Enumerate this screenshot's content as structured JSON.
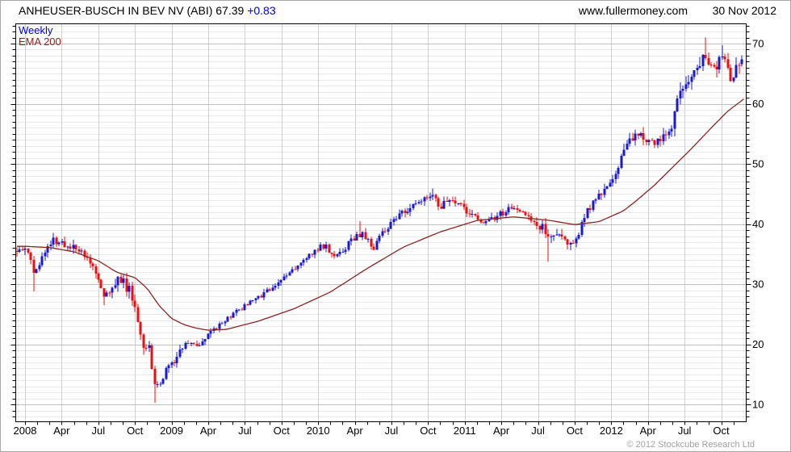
{
  "header": {
    "instrument": "ANHEUSER-BUSCH IN BEV NV (ABI)",
    "last_price": "67.39",
    "change": "+0.83",
    "website": "www.fullermoney.com",
    "date": "30 Nov 2012"
  },
  "legend": {
    "timeframe": "Weekly",
    "overlay": "EMA 200"
  },
  "footer": {
    "copyright": "© 2012 Stockcube Research Ltd"
  },
  "colors": {
    "up_candle": "#1a1acd",
    "down_candle": "#e81010",
    "ema_line": "#8b2424",
    "change_text": "#0000cc",
    "grid_minor": "#e9e9e9",
    "grid_major": "#bfbfbf",
    "grid_vertical": "#d0d0d0",
    "axis": "#000000",
    "copyright_text": "#a0a0a0"
  },
  "chart_data": {
    "type": "candlestick",
    "title": "ANHEUSER-BUSCH IN BEV NV (ABI)",
    "timeframe": "Weekly",
    "overlay": "EMA 200",
    "last_close": 67.39,
    "change": 0.83,
    "as_of": "30 Nov 2012",
    "x_axis": {
      "unit": "months since Jan 2008",
      "tick_labels": [
        "2008",
        "Apr",
        "Jul",
        "Oct",
        "2009",
        "Apr",
        "Jul",
        "Oct",
        "2010",
        "Apr",
        "Jul",
        "Oct",
        "2011",
        "Apr",
        "Jul",
        "Oct",
        "2012",
        "Apr",
        "Jul",
        "Oct"
      ],
      "tick_positions_months": [
        0,
        3,
        6,
        9,
        12,
        15,
        18,
        21,
        24,
        27,
        30,
        33,
        36,
        39,
        42,
        45,
        48,
        51,
        54,
        57
      ],
      "range_months": [
        -0.7,
        58.9
      ]
    },
    "y_axis": {
      "ticks": [
        10,
        20,
        30,
        40,
        50,
        60,
        70
      ],
      "range": [
        7.2,
        73.4
      ],
      "side": "right"
    },
    "grid": {
      "vertical": "quarterly",
      "h_minor_step": 1,
      "h_major_step": 10
    },
    "price_monthly_anchors": {
      "m": [
        -0.75,
        0,
        0.45,
        0.8,
        1.5,
        2.3,
        3,
        3.7,
        4.5,
        5.3,
        5.9,
        6.4,
        7,
        7.8,
        8.5,
        9.3,
        9.7,
        10.1,
        10.55,
        11,
        11.6,
        12.1,
        12.9,
        13.6,
        14.3,
        15.1,
        16,
        17,
        18,
        19,
        20,
        21,
        22,
        23,
        24,
        24.6,
        25.3,
        26,
        27,
        27.7,
        28.5,
        29.5,
        30.5,
        31.5,
        32.5,
        33.3,
        33.9,
        34.6,
        35.6,
        36.6,
        37.5,
        38.5,
        39.5,
        40.5,
        41.5,
        42.3,
        42.9,
        43.6,
        44.5,
        45.2,
        45.8,
        46.5,
        47.5,
        48.1,
        48.8,
        49.5,
        50.5,
        51.3,
        52.1,
        52.9,
        53.4,
        54.1,
        54.8,
        55.3,
        55.9,
        56.4,
        57,
        57.7,
        58.3,
        58.85
      ],
      "close": [
        35.2,
        36,
        34,
        31.3,
        35,
        37.4,
        37,
        36,
        35.8,
        33.3,
        31.6,
        27.6,
        28.8,
        30.9,
        29.2,
        24,
        19.6,
        20.3,
        13,
        13.6,
        15.8,
        16.8,
        19.6,
        20.6,
        19.6,
        21.8,
        23.4,
        25,
        26.4,
        27.6,
        29,
        31,
        32.6,
        34.4,
        36,
        36.4,
        34.5,
        35.6,
        37.8,
        38.4,
        36,
        39.2,
        41.4,
        42.6,
        44,
        45.1,
        42.9,
        43.6,
        43.2,
        41.4,
        40.2,
        41,
        42.4,
        42.4,
        40.4,
        39.6,
        37.3,
        38.6,
        37,
        38,
        41.2,
        43.6,
        45.4,
        47,
        50.8,
        54,
        55,
        53.2,
        54.2,
        56,
        61.2,
        62.6,
        65.8,
        67.4,
        66.6,
        65.6,
        68.3,
        64.6,
        65.8,
        67.39
      ]
    },
    "ema200_anchors": {
      "m": [
        -0.75,
        0,
        2,
        4,
        6,
        7.5,
        9,
        10,
        11,
        12,
        13,
        14,
        15,
        16.5,
        19,
        22,
        25,
        28,
        31,
        34,
        37,
        40,
        43,
        45,
        47,
        49,
        50,
        51.5,
        53,
        54.5,
        56,
        57.5,
        58.85
      ],
      "value": [
        36.3,
        36.3,
        36.1,
        35.4,
        33.9,
        32,
        31.1,
        29.3,
        26.4,
        24.3,
        23.3,
        22.7,
        22.35,
        22.5,
        23.8,
        25.9,
        28.7,
        32.6,
        36.2,
        38.7,
        40.6,
        41.2,
        40.6,
        39.9,
        40.4,
        42.2,
        43.8,
        46.4,
        49.4,
        52.4,
        55.6,
        58.7,
        60.8
      ]
    },
    "key_extremes": [
      {
        "m": 0.8,
        "kind": "low",
        "value": 28.8,
        "approx_date": "Jan 2008"
      },
      {
        "m": 6.4,
        "kind": "low",
        "value": 26.5,
        "approx_date": "Jul 2008"
      },
      {
        "m": 9.7,
        "kind": "low",
        "value": 18.3,
        "approx_date": "Oct 2008"
      },
      {
        "m": 10.55,
        "kind": "low",
        "value": 10.3,
        "approx_date": "Nov 2008"
      },
      {
        "m": 27.4,
        "kind": "high",
        "value": 40.5,
        "approx_date": "Apr 2010"
      },
      {
        "m": 33.3,
        "kind": "high",
        "value": 45.9,
        "approx_date": "Oct 2010"
      },
      {
        "m": 42.9,
        "kind": "low",
        "value": 33.8,
        "approx_date": "Aug 2011"
      },
      {
        "m": 55.6,
        "kind": "high",
        "value": 71.0,
        "approx_date": "Aug 2012"
      },
      {
        "m": 57.0,
        "kind": "high",
        "value": 69.7,
        "approx_date": "Oct 2012"
      },
      {
        "m": 57.7,
        "kind": "low",
        "value": 63.7,
        "approx_date": "Oct 2012"
      }
    ],
    "note": "weekly candles rendered by deterministic interpolation of monthly anchors"
  }
}
